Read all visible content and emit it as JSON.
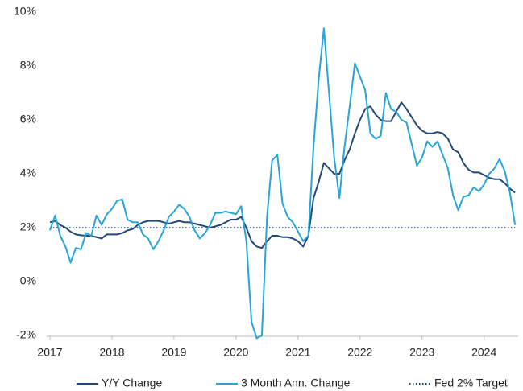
{
  "chart_data": {
    "type": "line",
    "x": [
      2017,
      2017.083,
      2017.167,
      2017.25,
      2017.333,
      2017.417,
      2017.5,
      2017.583,
      2017.667,
      2017.75,
      2017.833,
      2017.917,
      2018,
      2018.083,
      2018.167,
      2018.25,
      2018.333,
      2018.417,
      2018.5,
      2018.583,
      2018.667,
      2018.75,
      2018.833,
      2018.917,
      2019,
      2019.083,
      2019.167,
      2019.25,
      2019.333,
      2019.417,
      2019.5,
      2019.583,
      2019.667,
      2019.75,
      2019.833,
      2019.917,
      2020,
      2020.083,
      2020.167,
      2020.25,
      2020.333,
      2020.417,
      2020.5,
      2020.583,
      2020.667,
      2020.75,
      2020.833,
      2020.917,
      2021,
      2021.083,
      2021.167,
      2021.25,
      2021.333,
      2021.417,
      2021.5,
      2021.583,
      2021.667,
      2021.75,
      2021.833,
      2021.917,
      2022,
      2022.083,
      2022.167,
      2022.25,
      2022.333,
      2022.417,
      2022.5,
      2022.583,
      2022.667,
      2022.75,
      2022.833,
      2022.917,
      2023,
      2023.083,
      2023.167,
      2023.25,
      2023.333,
      2023.417,
      2023.5,
      2023.583,
      2023.667,
      2023.75,
      2023.833,
      2023.917,
      2024,
      2024.083,
      2024.167,
      2024.25,
      2024.333,
      2024.417,
      2024.5
    ],
    "series": [
      {
        "name": "Y/Y Change",
        "color": "#23497a",
        "values": [
          2.2,
          2.25,
          2.1,
          2.0,
          1.85,
          1.75,
          1.72,
          1.7,
          1.7,
          1.65,
          1.6,
          1.75,
          1.75,
          1.75,
          1.8,
          1.9,
          1.95,
          2.1,
          2.2,
          2.25,
          2.25,
          2.25,
          2.2,
          2.15,
          2.2,
          2.25,
          2.2,
          2.2,
          2.15,
          2.1,
          2.05,
          2.0,
          2.05,
          2.1,
          2.2,
          2.3,
          2.3,
          2.4,
          2.0,
          1.5,
          1.3,
          1.25,
          1.5,
          1.7,
          1.7,
          1.65,
          1.65,
          1.6,
          1.5,
          1.3,
          1.7,
          3.1,
          3.7,
          4.4,
          4.2,
          4.0,
          4.0,
          4.5,
          4.9,
          5.5,
          6.0,
          6.4,
          6.5,
          6.2,
          6.0,
          5.95,
          5.95,
          6.3,
          6.65,
          6.4,
          6.1,
          5.8,
          5.6,
          5.5,
          5.5,
          5.55,
          5.5,
          5.3,
          4.9,
          4.8,
          4.4,
          4.15,
          4.05,
          4.05,
          3.95,
          3.85,
          3.8,
          3.8,
          3.65,
          3.45,
          3.3
        ]
      },
      {
        "name": "3 Month Ann. Change",
        "color": "#26a5d6",
        "values": [
          1.9,
          2.45,
          1.7,
          1.3,
          0.7,
          1.25,
          1.2,
          1.8,
          1.7,
          2.45,
          2.1,
          2.5,
          2.7,
          3.0,
          3.05,
          2.3,
          2.2,
          2.2,
          1.75,
          1.6,
          1.2,
          1.5,
          1.9,
          2.4,
          2.6,
          2.85,
          2.7,
          2.4,
          1.9,
          1.6,
          1.8,
          2.1,
          2.55,
          2.55,
          2.6,
          2.55,
          2.5,
          2.8,
          1.5,
          -1.5,
          -2.1,
          -2.0,
          2.4,
          4.5,
          4.7,
          2.9,
          2.4,
          2.2,
          1.85,
          1.5,
          1.7,
          5.0,
          7.5,
          9.4,
          7.0,
          4.6,
          3.1,
          5.0,
          6.5,
          8.1,
          7.6,
          7.1,
          5.5,
          5.3,
          5.4,
          7.0,
          6.4,
          6.3,
          6.0,
          5.9,
          5.1,
          4.3,
          4.6,
          5.2,
          5.0,
          5.2,
          4.7,
          4.2,
          3.2,
          2.65,
          3.15,
          3.2,
          3.5,
          3.35,
          3.6,
          4.0,
          4.2,
          4.55,
          4.1,
          3.3,
          2.1
        ]
      }
    ],
    "target": {
      "name": "Fed  2% Target",
      "value": 2,
      "color": "#1c3f60"
    },
    "xlim": [
      2017,
      2024.55
    ],
    "xticks": [
      2017,
      2018,
      2019,
      2020,
      2021,
      2022,
      2023,
      2024
    ],
    "ylim": [
      -2,
      10
    ],
    "yticks": [
      {
        "value": -2,
        "label": "-2%"
      },
      {
        "value": 0,
        "label": "0%"
      },
      {
        "value": 2,
        "label": "2%"
      },
      {
        "value": 4,
        "label": "4%"
      },
      {
        "value": 6,
        "label": "6%"
      },
      {
        "value": 8,
        "label": "8%"
      },
      {
        "value": 10,
        "label": "10%"
      }
    ],
    "grid": false
  }
}
